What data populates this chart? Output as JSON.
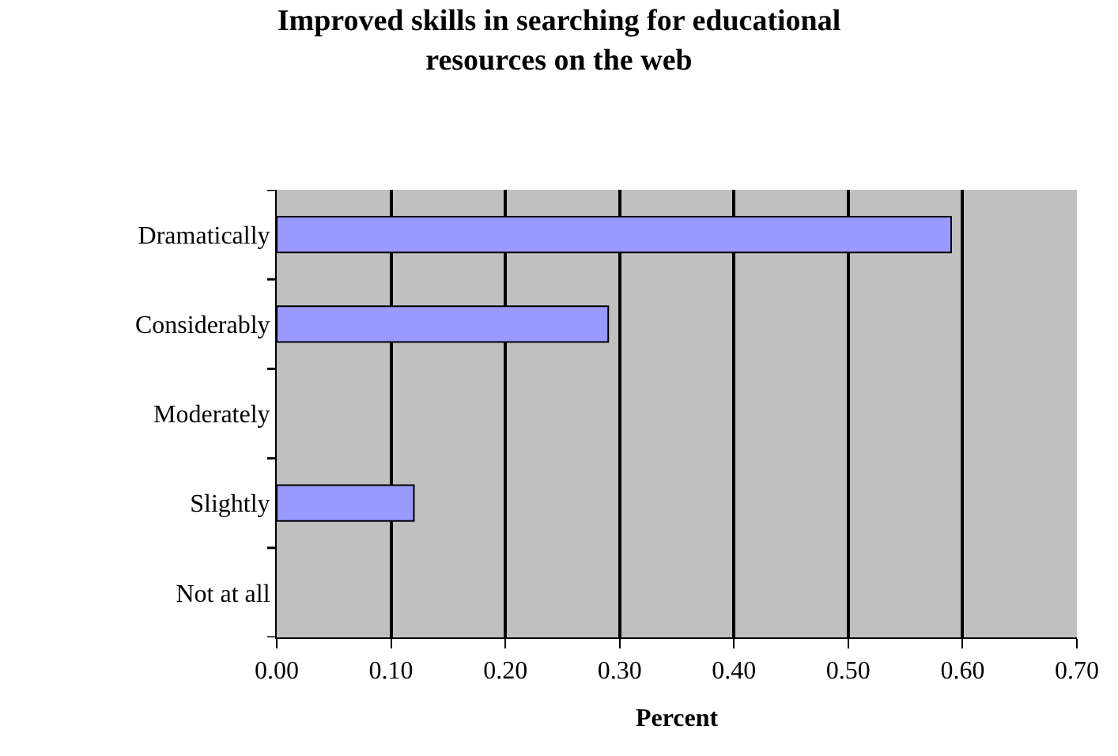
{
  "chart_data": {
    "type": "bar",
    "orientation": "horizontal",
    "title": "Improved skills in searching for educational resources on the web",
    "xlabel": "Percent",
    "categories": [
      "Dramatically",
      "Considerably",
      "Moderately",
      "Slightly",
      "Not at all"
    ],
    "values": [
      0.59,
      0.29,
      0,
      0.12,
      0
    ],
    "color": "#9999ff",
    "xlim": [
      0,
      0.7
    ],
    "xticks": [
      {
        "value": 0,
        "label": "0.00"
      },
      {
        "value": 0.1,
        "label": "0.10"
      },
      {
        "value": 0.2,
        "label": "0.20"
      },
      {
        "value": 0.3,
        "label": "0.30"
      },
      {
        "value": 0.4,
        "label": "0.40"
      },
      {
        "value": 0.5,
        "label": "0.50"
      },
      {
        "value": 0.6,
        "label": "0.60"
      },
      {
        "value": 0.7,
        "label": "0.70"
      }
    ],
    "grid": "x",
    "legend": false
  }
}
